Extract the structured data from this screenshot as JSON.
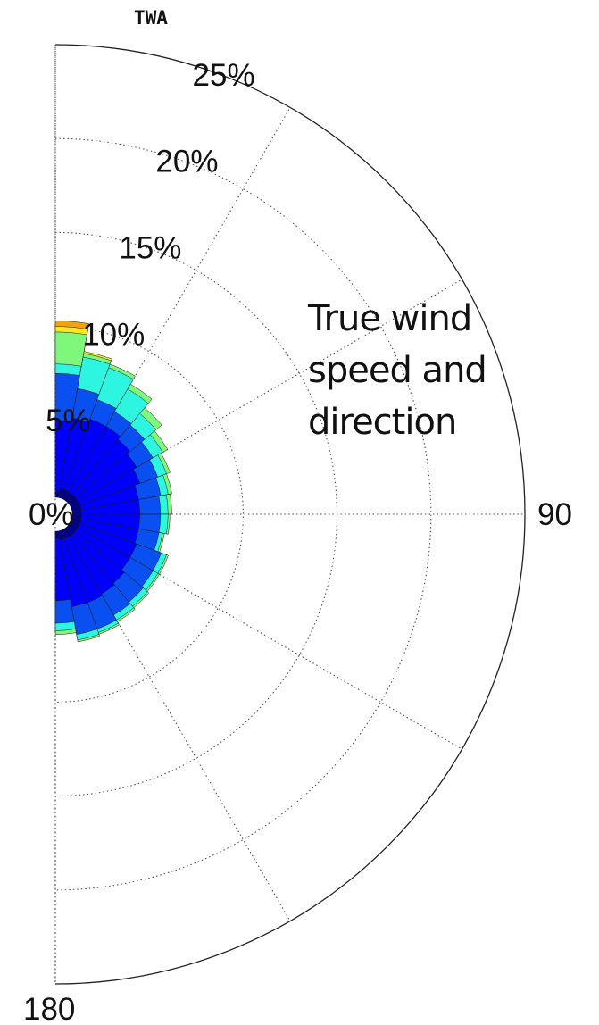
{
  "chart_data": {
    "type": "polar-bar",
    "title": "TWA",
    "annotation": "True wind\nspeed and\ndirection",
    "radial_ticks": [
      "0%",
      "5%",
      "10%",
      "15%",
      "20%",
      "25%"
    ],
    "radial_values": [
      0,
      5,
      10,
      15,
      20,
      25
    ],
    "rmax": 25,
    "angle_labels": [
      {
        "angle": 0,
        "text": ""
      },
      {
        "angle": 90,
        "text": "90"
      },
      {
        "angle": 180,
        "text": "180"
      }
    ],
    "angle_gridlines_deg": [
      0,
      30,
      60,
      90,
      120,
      150,
      180
    ],
    "sector_width_deg": 10,
    "band_colors": [
      "#00008f",
      "#0000ff",
      "#0a4ff0",
      "#2ef5e0",
      "#7ff77a",
      "#ffe81a",
      "#f2a20c"
    ],
    "sectors": [
      {
        "angle": 5,
        "cumulative": [
          1.2,
          5.0,
          7.5,
          8.0,
          9.7,
          10.0,
          10.3
        ]
      },
      {
        "angle": 15,
        "cumulative": [
          1.4,
          5.2,
          6.8,
          8.5,
          8.7,
          8.8
        ]
      },
      {
        "angle": 25,
        "cumulative": [
          1.4,
          5.4,
          6.5,
          8.3,
          8.5
        ]
      },
      {
        "angle": 35,
        "cumulative": [
          1.4,
          5.4,
          6.3,
          7.7,
          8.0
        ]
      },
      {
        "angle": 45,
        "cumulative": [
          1.4,
          5.2,
          6.2,
          7.0,
          7.4
        ]
      },
      {
        "angle": 55,
        "cumulative": [
          1.4,
          5.0,
          6.0,
          6.6,
          6.9
        ]
      },
      {
        "angle": 65,
        "cumulative": [
          1.4,
          4.8,
          5.8,
          6.3,
          6.5
        ]
      },
      {
        "angle": 75,
        "cumulative": [
          1.4,
          4.5,
          5.7,
          6.1,
          6.3
        ]
      },
      {
        "angle": 85,
        "cumulative": [
          1.4,
          4.5,
          5.6,
          6.0,
          6.2
        ]
      },
      {
        "angle": 95,
        "cumulative": [
          1.4,
          4.5,
          5.6,
          6.0,
          6.1
        ]
      },
      {
        "angle": 105,
        "cumulative": [
          1.4,
          4.5,
          5.6,
          5.8,
          5.9
        ]
      },
      {
        "angle": 115,
        "cumulative": [
          1.4,
          4.6,
          6.0,
          6.3,
          6.4
        ]
      },
      {
        "angle": 125,
        "cumulative": [
          1.4,
          4.6,
          6.0,
          6.3,
          6.4
        ]
      },
      {
        "angle": 135,
        "cumulative": [
          1.4,
          4.8,
          6.1,
          6.4,
          6.5
        ]
      },
      {
        "angle": 145,
        "cumulative": [
          1.4,
          4.9,
          6.2,
          6.5,
          6.6
        ]
      },
      {
        "angle": 155,
        "cumulative": [
          1.4,
          5.0,
          6.5,
          6.7,
          6.8
        ]
      },
      {
        "angle": 165,
        "cumulative": [
          1.4,
          5.0,
          6.5,
          6.8,
          6.9
        ]
      },
      {
        "angle": 175,
        "cumulative": [
          1.3,
          4.6,
          5.8,
          6.2,
          6.4
        ]
      }
    ],
    "grid": true,
    "legend": "none"
  }
}
